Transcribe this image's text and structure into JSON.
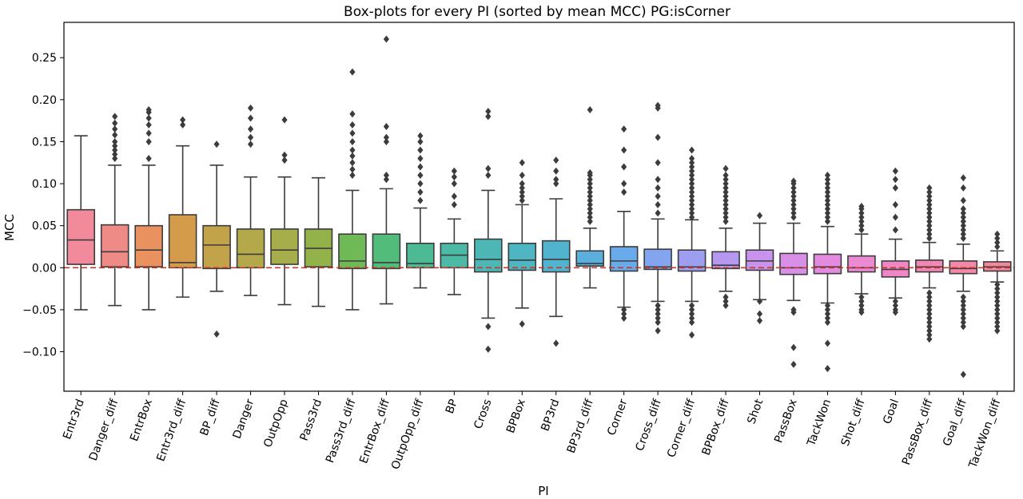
{
  "chart_data": {
    "type": "box",
    "title": "Box-plots for every PI (sorted by mean MCC) PG:isCorner",
    "xlabel": "PI",
    "ylabel": "MCC",
    "ylim": [
      -0.147,
      0.292
    ],
    "yticks": [
      -0.1,
      -0.05,
      0.0,
      0.05,
      0.1,
      0.15,
      0.2,
      0.25
    ],
    "ytick_labels": [
      "−0.10",
      "−0.05",
      "0.00",
      "0.05",
      "0.10",
      "0.15",
      "0.20",
      "0.25"
    ],
    "reference_line": {
      "y": 0.0,
      "style": "dashed",
      "color": "#c0392b"
    },
    "categories": [
      "Entr3rd",
      "Danger_diff",
      "EntrBox",
      "Entr3rd_diff",
      "BP_diff",
      "Danger",
      "OutpOpp",
      "Pass3rd",
      "Pass3rd_diff",
      "EntrBox_diff",
      "OutpOpp_diff",
      "BP",
      "Cross",
      "BPBox",
      "BP3rd",
      "BP3rd_diff",
      "Corner",
      "Cross_diff",
      "Corner_diff",
      "BPBox_diff",
      "Shot",
      "PassBox",
      "TackWon",
      "Shot_diff",
      "Goal",
      "PassBox_diff",
      "Goal_diff",
      "TackWon_diff"
    ],
    "colors": [
      "#f18a9a",
      "#ee8b86",
      "#e99260",
      "#d49b4a",
      "#c3a349",
      "#b4a94a",
      "#a5ae4a",
      "#93b34a",
      "#6fba56",
      "#52bc7a",
      "#4cbb95",
      "#4cb9a6",
      "#4db7b5",
      "#4eb5c2",
      "#52b3cf",
      "#5aafde",
      "#69aaeb",
      "#83a4ef",
      "#9e9ef1",
      "#b698f0",
      "#c893ed",
      "#d78fe7",
      "#e48be0",
      "#ec89d3",
      "#f087c4",
      "#f287b6",
      "#f388a8",
      "#f3899e"
    ],
    "boxes": [
      {
        "name": "Entr3rd",
        "q1": 0.004,
        "median": 0.033,
        "q3": 0.069,
        "whislo": -0.05,
        "whishi": 0.157,
        "fliers": []
      },
      {
        "name": "Danger_diff",
        "q1": 0.001,
        "median": 0.019,
        "q3": 0.051,
        "whislo": -0.045,
        "whishi": 0.122,
        "fliers": [
          0.13,
          0.135,
          0.14,
          0.145,
          0.15,
          0.158,
          0.165,
          0.172,
          0.18
        ]
      },
      {
        "name": "EntrBox",
        "q1": 0.001,
        "median": 0.021,
        "q3": 0.05,
        "whislo": -0.05,
        "whishi": 0.122,
        "fliers": [
          0.13,
          0.15,
          0.16,
          0.17,
          0.178,
          0.185,
          0.188
        ]
      },
      {
        "name": "Entr3rd_diff",
        "q1": 0.0,
        "median": 0.006,
        "q3": 0.063,
        "whislo": -0.035,
        "whishi": 0.145,
        "fliers": [
          0.17,
          0.176
        ]
      },
      {
        "name": "BP_diff",
        "q1": -0.001,
        "median": 0.027,
        "q3": 0.05,
        "whislo": -0.028,
        "whishi": 0.122,
        "fliers": [
          0.147,
          -0.079
        ]
      },
      {
        "name": "Danger",
        "q1": 0.0,
        "median": 0.016,
        "q3": 0.046,
        "whislo": -0.033,
        "whishi": 0.108,
        "fliers": [
          0.147,
          0.155,
          0.165,
          0.178,
          0.19
        ]
      },
      {
        "name": "OutpOpp",
        "q1": 0.004,
        "median": 0.021,
        "q3": 0.046,
        "whislo": -0.044,
        "whishi": 0.108,
        "fliers": [
          0.128,
          0.134,
          0.176
        ]
      },
      {
        "name": "Pass3rd",
        "q1": 0.001,
        "median": 0.023,
        "q3": 0.046,
        "whislo": -0.046,
        "whishi": 0.107,
        "fliers": []
      },
      {
        "name": "Pass3rd_diff",
        "q1": -0.001,
        "median": 0.008,
        "q3": 0.04,
        "whislo": -0.05,
        "whishi": 0.092,
        "fliers": [
          0.11,
          0.117,
          0.125,
          0.133,
          0.14,
          0.15,
          0.16,
          0.17,
          0.183,
          0.233
        ]
      },
      {
        "name": "EntrBox_diff",
        "q1": -0.001,
        "median": 0.006,
        "q3": 0.04,
        "whislo": -0.043,
        "whishi": 0.094,
        "fliers": [
          0.105,
          0.11,
          0.15,
          0.155,
          0.168,
          0.272
        ]
      },
      {
        "name": "OutpOpp_diff",
        "q1": 0.0,
        "median": 0.005,
        "q3": 0.029,
        "whislo": -0.024,
        "whishi": 0.071,
        "fliers": [
          0.08,
          0.09,
          0.1,
          0.11,
          0.12,
          0.13,
          0.14,
          0.15,
          0.157
        ]
      },
      {
        "name": "BP",
        "q1": 0.0,
        "median": 0.015,
        "q3": 0.029,
        "whislo": -0.032,
        "whishi": 0.058,
        "fliers": [
          0.075,
          0.085,
          0.1,
          0.108,
          0.115
        ]
      },
      {
        "name": "Cross",
        "q1": -0.005,
        "median": 0.01,
        "q3": 0.034,
        "whislo": -0.06,
        "whishi": 0.092,
        "fliers": [
          0.11,
          0.118,
          0.18,
          0.186,
          -0.07,
          -0.097
        ]
      },
      {
        "name": "BPBox",
        "q1": -0.003,
        "median": 0.009,
        "q3": 0.029,
        "whislo": -0.048,
        "whishi": 0.075,
        "fliers": [
          0.08,
          0.085,
          0.09,
          0.095,
          0.1,
          0.11,
          0.125,
          -0.067
        ]
      },
      {
        "name": "BP3rd",
        "q1": -0.005,
        "median": 0.01,
        "q3": 0.032,
        "whislo": -0.058,
        "whishi": 0.082,
        "fliers": [
          0.1,
          0.105,
          0.115,
          0.128,
          -0.09
        ]
      },
      {
        "name": "BP3rd_diff",
        "q1": 0.002,
        "median": 0.005,
        "q3": 0.02,
        "whislo": -0.024,
        "whishi": 0.047,
        "fliers": [
          0.055,
          0.06,
          0.065,
          0.07,
          0.075,
          0.08,
          0.085,
          0.09,
          0.095,
          0.1,
          0.105,
          0.11,
          0.113,
          0.188
        ]
      },
      {
        "name": "Corner",
        "q1": -0.004,
        "median": 0.008,
        "q3": 0.025,
        "whislo": -0.047,
        "whishi": 0.067,
        "fliers": [
          0.09,
          0.1,
          0.12,
          0.14,
          0.165,
          -0.05,
          -0.055,
          -0.06
        ]
      },
      {
        "name": "Cross_diff",
        "q1": -0.002,
        "median": 0.001,
        "q3": 0.022,
        "whislo": -0.04,
        "whishi": 0.058,
        "fliers": [
          0.065,
          0.075,
          0.085,
          0.095,
          0.105,
          0.125,
          0.155,
          0.19,
          0.193,
          -0.045,
          -0.05,
          -0.055,
          -0.06,
          -0.065,
          -0.075
        ]
      },
      {
        "name": "Corner_diff",
        "q1": -0.004,
        "median": 0.001,
        "q3": 0.021,
        "whislo": -0.04,
        "whishi": 0.057,
        "fliers": [
          0.06,
          0.065,
          0.07,
          0.075,
          0.08,
          0.085,
          0.09,
          0.095,
          0.1,
          0.105,
          0.11,
          0.115,
          0.12,
          0.125,
          0.13,
          0.14,
          -0.045,
          -0.05,
          -0.055,
          -0.06,
          -0.065,
          -0.08
        ]
      },
      {
        "name": "BPBox_diff",
        "q1": -0.001,
        "median": 0.003,
        "q3": 0.019,
        "whislo": -0.028,
        "whishi": 0.047,
        "fliers": [
          0.055,
          0.06,
          0.065,
          0.07,
          0.075,
          0.08,
          0.085,
          0.09,
          0.095,
          0.1,
          0.105,
          0.11,
          0.118,
          -0.035,
          -0.04,
          -0.045
        ]
      },
      {
        "name": "Shot",
        "q1": -0.003,
        "median": 0.008,
        "q3": 0.021,
        "whislo": -0.038,
        "whishi": 0.053,
        "fliers": [
          0.062,
          -0.04,
          -0.055,
          -0.063
        ]
      },
      {
        "name": "PassBox",
        "q1": -0.008,
        "median": 0.0,
        "q3": 0.017,
        "whislo": -0.039,
        "whishi": 0.053,
        "fliers": [
          0.06,
          0.065,
          0.07,
          0.075,
          0.08,
          0.085,
          0.09,
          0.095,
          0.1,
          0.103,
          -0.05,
          -0.053,
          -0.095,
          -0.115
        ]
      },
      {
        "name": "TackWon",
        "q1": -0.007,
        "median": 0.001,
        "q3": 0.016,
        "whislo": -0.042,
        "whishi": 0.049,
        "fliers": [
          0.055,
          0.06,
          0.065,
          0.07,
          0.075,
          0.08,
          0.085,
          0.09,
          0.095,
          0.1,
          0.105,
          0.11,
          -0.045,
          -0.05,
          -0.055,
          -0.06,
          -0.065,
          -0.09,
          -0.12
        ]
      },
      {
        "name": "Shot_diff",
        "q1": -0.005,
        "median": 0.0,
        "q3": 0.014,
        "whislo": -0.031,
        "whishi": 0.04,
        "fliers": [
          0.045,
          0.05,
          0.055,
          0.06,
          0.065,
          0.07,
          0.073,
          -0.035,
          -0.04,
          -0.045,
          -0.05,
          -0.053
        ]
      },
      {
        "name": "Goal",
        "q1": -0.011,
        "median": -0.002,
        "q3": 0.008,
        "whislo": -0.036,
        "whishi": 0.034,
        "fliers": [
          0.045,
          0.06,
          0.075,
          0.095,
          0.105,
          0.115,
          -0.04,
          -0.045,
          -0.05,
          -0.053
        ]
      },
      {
        "name": "PassBox_diff",
        "q1": -0.005,
        "median": 0.001,
        "q3": 0.009,
        "whislo": -0.024,
        "whishi": 0.03,
        "fliers": [
          0.035,
          0.04,
          0.045,
          0.05,
          0.055,
          0.06,
          0.065,
          0.07,
          0.075,
          0.08,
          0.085,
          0.09,
          0.095,
          -0.03,
          -0.035,
          -0.04,
          -0.045,
          -0.05,
          -0.055,
          -0.06,
          -0.065,
          -0.07,
          -0.075,
          -0.08,
          -0.085
        ]
      },
      {
        "name": "Goal_diff",
        "q1": -0.007,
        "median": -0.001,
        "q3": 0.008,
        "whislo": -0.028,
        "whishi": 0.028,
        "fliers": [
          0.035,
          0.04,
          0.045,
          0.05,
          0.055,
          0.06,
          0.065,
          0.07,
          0.08,
          0.095,
          0.107,
          -0.035,
          -0.04,
          -0.045,
          -0.05,
          -0.055,
          -0.06,
          -0.065,
          -0.07,
          -0.127
        ]
      },
      {
        "name": "TackWon_diff",
        "q1": -0.004,
        "median": 0.001,
        "q3": 0.007,
        "whislo": -0.017,
        "whishi": 0.02,
        "fliers": [
          0.025,
          0.03,
          0.035,
          0.04,
          -0.02,
          -0.025,
          -0.03,
          -0.035,
          -0.04,
          -0.045,
          -0.05,
          -0.055,
          -0.06,
          -0.065,
          -0.07,
          -0.075
        ]
      }
    ]
  }
}
